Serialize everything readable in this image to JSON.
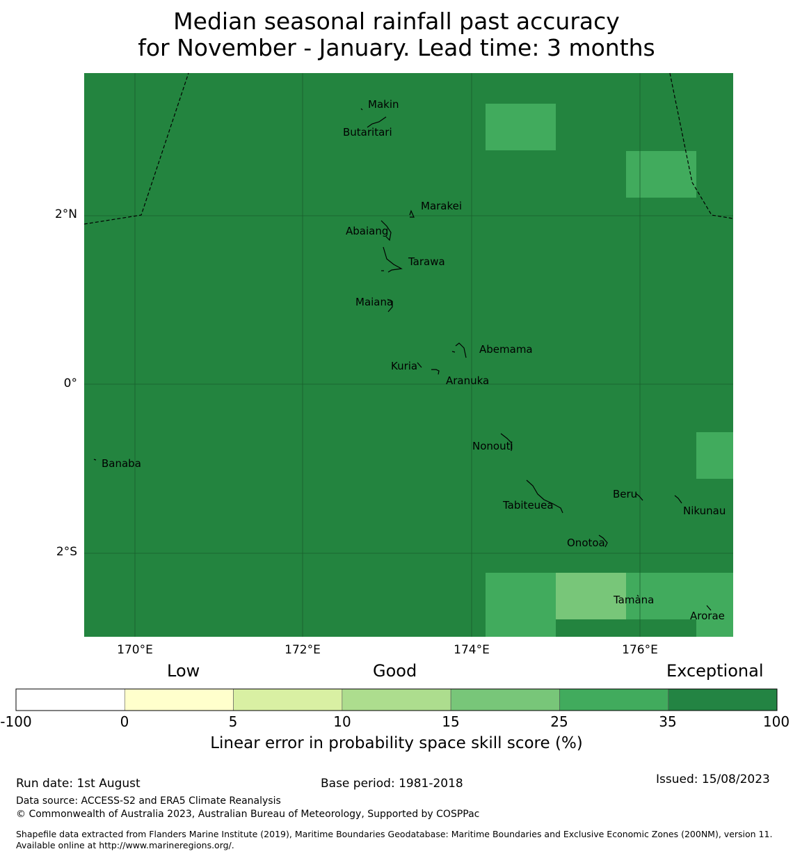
{
  "title": {
    "line1": "Median seasonal rainfall past accuracy",
    "line2": "for November - January. Lead time: 3 months"
  },
  "map": {
    "latitude_labels": [
      "2°N",
      "0°",
      "2°S"
    ],
    "longitude_labels": [
      "170°E",
      "172°E",
      "174°E",
      "176°E"
    ],
    "background_color": "#23843f",
    "places": [
      "Makin",
      "Butaritari",
      "Marakei",
      "Abaiang",
      "Tarawa",
      "Maiana",
      "Abemama",
      "Kuria",
      "Aranuka",
      "Banaba",
      "Nonouti",
      "Tabiteuea",
      "Beru",
      "Nikunau",
      "Onotoa",
      "Tamana",
      "Arorae"
    ]
  },
  "colorbar": {
    "category_labels": [
      "Low",
      "Good",
      "Exceptional"
    ],
    "ticks": [
      "-100",
      "0",
      "5",
      "10",
      "15",
      "25",
      "35",
      "100"
    ],
    "colors": [
      "#ffffff",
      "#ffffcc",
      "#d9f0a3",
      "#addd8e",
      "#78c679",
      "#41ab5d",
      "#238443"
    ],
    "label": "Linear error in probability space skill score (%)"
  },
  "footer": {
    "run_date": "Run date: 1st August",
    "base_period": "Base period: 1981-2018",
    "issued": "Issued: 15/08/2023",
    "data_source": "Data source: ACCESS-S2 and ERA5 Climate Reanalysis",
    "copyright": "© Commonwealth of Australia 2023, Australian Bureau of Meteorology, Supported by COSPPac",
    "shapefile": "Shapefile data extracted from Flanders Marine Institute (2019), Maritime Boundaries Geodatabase: Maritime Boundaries and Exclusive Economic Zones (200NM), version 11. Available online at http://www.marineregions.org/."
  }
}
